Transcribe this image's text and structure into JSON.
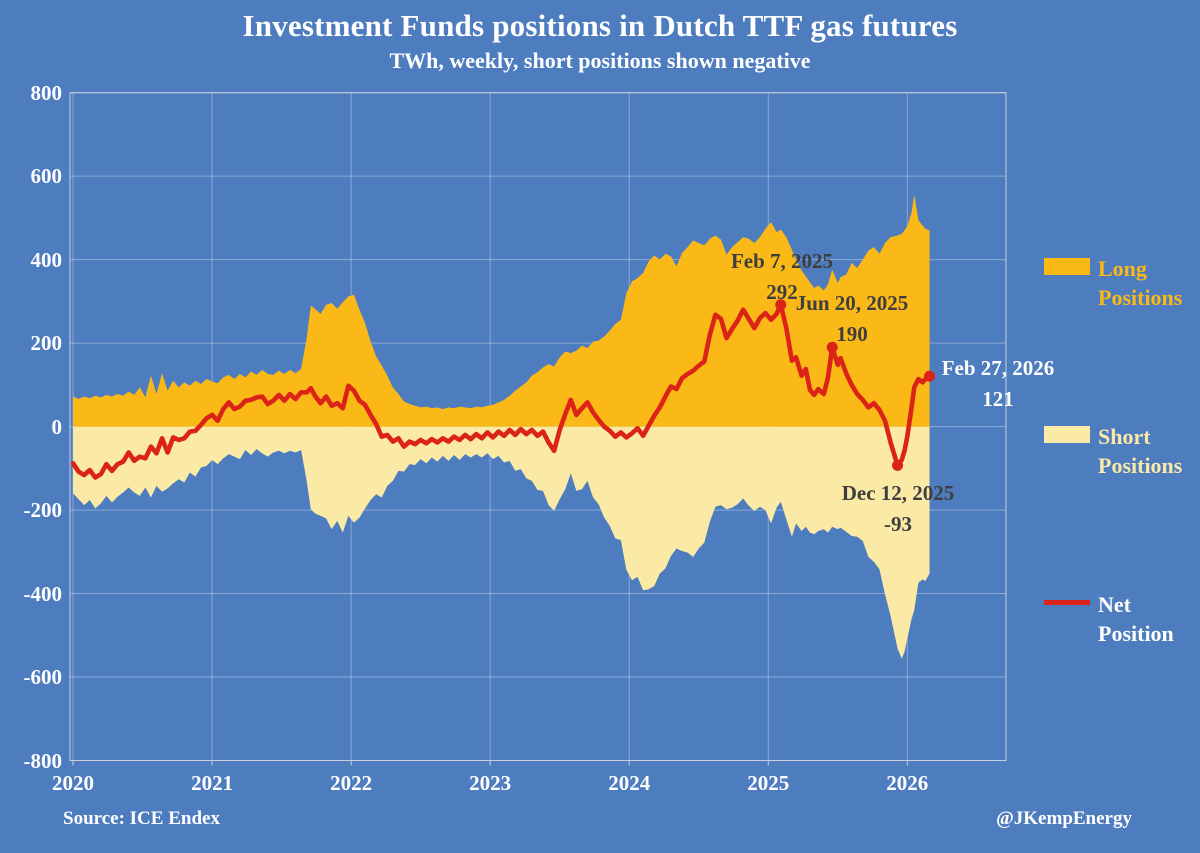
{
  "colors": {
    "background": "#4d7cbf",
    "long_fill": "#FBB917",
    "short_fill": "#FBE9A6",
    "net_line": "#DB2317",
    "grid": "rgba(215,224,238,0.45)",
    "frame": "#c9d1de",
    "annotation_dark": "#3e3e3e",
    "annotation_light": "#ffffff"
  },
  "footer": {
    "source": "Source: ICE Endex",
    "handle": "@JKempEnergy"
  },
  "chart_data": {
    "type": "area",
    "title": "Investment Funds positions in Dutch TTF gas futures",
    "subtitle": "TWh, weekly, short positions shown negative",
    "xlabel": "",
    "ylabel": "",
    "xlim": [
      2019.978,
      2026.71
    ],
    "ylim": [
      -800,
      800
    ],
    "grid": true,
    "x_ticks": [
      2020,
      2021,
      2022,
      2023,
      2024,
      2025,
      2026
    ],
    "y_ticks": [
      800,
      600,
      400,
      200,
      0,
      -200,
      -400,
      -600,
      -800
    ],
    "x": [
      2020.0,
      2020.04,
      2020.08,
      2020.12,
      2020.16,
      2020.2,
      2020.24,
      2020.28,
      2020.32,
      2020.36,
      2020.4,
      2020.44,
      2020.48,
      2020.52,
      2020.56,
      2020.6,
      2020.64,
      2020.68,
      2020.72,
      2020.76,
      2020.8,
      2020.84,
      2020.88,
      2020.92,
      2020.96,
      2021.0,
      2021.04,
      2021.08,
      2021.12,
      2021.16,
      2021.2,
      2021.24,
      2021.28,
      2021.32,
      2021.36,
      2021.4,
      2021.44,
      2021.48,
      2021.52,
      2021.56,
      2021.6,
      2021.64,
      2021.68,
      2021.71,
      2021.74,
      2021.78,
      2021.82,
      2021.86,
      2021.9,
      2021.94,
      2021.98,
      2022.02,
      2022.06,
      2022.1,
      2022.14,
      2022.18,
      2022.22,
      2022.26,
      2022.3,
      2022.34,
      2022.38,
      2022.42,
      2022.46,
      2022.5,
      2022.54,
      2022.58,
      2022.62,
      2022.66,
      2022.7,
      2022.74,
      2022.78,
      2022.82,
      2022.86,
      2022.9,
      2022.94,
      2022.98,
      2023.02,
      2023.06,
      2023.1,
      2023.14,
      2023.18,
      2023.22,
      2023.26,
      2023.3,
      2023.34,
      2023.38,
      2023.42,
      2023.46,
      2023.5,
      2023.54,
      2023.58,
      2023.62,
      2023.66,
      2023.7,
      2023.74,
      2023.78,
      2023.82,
      2023.86,
      2023.9,
      2023.94,
      2023.98,
      2024.02,
      2024.06,
      2024.1,
      2024.14,
      2024.18,
      2024.22,
      2024.26,
      2024.3,
      2024.34,
      2024.38,
      2024.42,
      2024.46,
      2024.5,
      2024.54,
      2024.58,
      2024.62,
      2024.66,
      2024.7,
      2024.74,
      2024.78,
      2024.82,
      2024.86,
      2024.9,
      2024.94,
      2024.98,
      2025.02,
      2025.06,
      2025.09,
      2025.13,
      2025.17,
      2025.2,
      2025.24,
      2025.27,
      2025.3,
      2025.33,
      2025.36,
      2025.4,
      2025.43,
      2025.46,
      2025.5,
      2025.52,
      2025.56,
      2025.6,
      2025.64,
      2025.68,
      2025.72,
      2025.76,
      2025.8,
      2025.84,
      2025.88,
      2025.93,
      2025.96,
      2025.98,
      2026.0,
      2026.03,
      2026.05,
      2026.08,
      2026.11,
      2026.13,
      2026.16
    ],
    "series": [
      {
        "name": "Long Positions",
        "kind": "area",
        "color": "#FBB917",
        "values": [
          72,
          66,
          72,
          68,
          74,
          70,
          76,
          72,
          78,
          74,
          84,
          76,
          94,
          70,
          122,
          78,
          128,
          86,
          110,
          94,
          106,
          98,
          110,
          102,
          114,
          108,
          104,
          118,
          124,
          114,
          126,
          118,
          132,
          124,
          136,
          126,
          124,
          134,
          126,
          136,
          128,
          138,
          212,
          290,
          282,
          270,
          292,
          296,
          282,
          298,
          312,
          316,
          280,
          248,
          204,
          168,
          146,
          122,
          94,
          78,
          60,
          54,
          50,
          46,
          48,
          44,
          46,
          42,
          46,
          44,
          48,
          46,
          44,
          48,
          46,
          50,
          52,
          58,
          64,
          74,
          86,
          96,
          106,
          122,
          130,
          142,
          150,
          144,
          166,
          180,
          176,
          182,
          194,
          188,
          204,
          206,
          216,
          230,
          246,
          256,
          320,
          348,
          356,
          368,
          396,
          410,
          400,
          414,
          408,
          384,
          416,
          430,
          446,
          440,
          434,
          450,
          458,
          448,
          412,
          430,
          442,
          454,
          450,
          440,
          454,
          474,
          490,
          466,
          472,
          454,
          424,
          400,
          374,
          360,
          346,
          332,
          338,
          326,
          342,
          376,
          344,
          358,
          364,
          392,
          380,
          400,
          422,
          430,
          414,
          440,
          454,
          458,
          462,
          470,
          480,
          512,
          556,
          494,
          482,
          474,
          470
        ]
      },
      {
        "name": "Short Positions",
        "kind": "area",
        "color": "#FBE9A6",
        "values": [
          -160,
          -174,
          -188,
          -176,
          -196,
          -184,
          -166,
          -182,
          -168,
          -158,
          -146,
          -158,
          -166,
          -146,
          -170,
          -142,
          -156,
          -148,
          -136,
          -126,
          -134,
          -110,
          -120,
          -98,
          -94,
          -80,
          -90,
          -76,
          -66,
          -72,
          -78,
          -56,
          -68,
          -54,
          -64,
          -72,
          -62,
          -58,
          -64,
          -58,
          -62,
          -56,
          -130,
          -198,
          -208,
          -214,
          -220,
          -246,
          -226,
          -254,
          -214,
          -230,
          -218,
          -196,
          -176,
          -162,
          -170,
          -142,
          -130,
          -106,
          -108,
          -90,
          -92,
          -78,
          -88,
          -74,
          -84,
          -70,
          -82,
          -68,
          -80,
          -66,
          -74,
          -66,
          -74,
          -64,
          -78,
          -70,
          -86,
          -82,
          -106,
          -102,
          -124,
          -130,
          -152,
          -154,
          -188,
          -202,
          -174,
          -150,
          -112,
          -154,
          -150,
          -130,
          -170,
          -186,
          -218,
          -238,
          -268,
          -272,
          -344,
          -368,
          -360,
          -392,
          -390,
          -382,
          -352,
          -340,
          -310,
          -292,
          -298,
          -302,
          -312,
          -292,
          -278,
          -228,
          -192,
          -188,
          -198,
          -194,
          -186,
          -172,
          -190,
          -202,
          -192,
          -200,
          -232,
          -194,
          -180,
          -222,
          -264,
          -232,
          -250,
          -240,
          -254,
          -258,
          -250,
          -246,
          -254,
          -240,
          -246,
          -242,
          -252,
          -262,
          -264,
          -274,
          -312,
          -324,
          -342,
          -402,
          -454,
          -532,
          -556,
          -540,
          -508,
          -462,
          -440,
          -374,
          -366,
          -370,
          -352
        ]
      },
      {
        "name": "Net Position",
        "kind": "line",
        "color": "#DB2317",
        "values": [
          -88,
          -108,
          -116,
          -104,
          -122,
          -114,
          -90,
          -106,
          -90,
          -84,
          -62,
          -82,
          -72,
          -76,
          -48,
          -64,
          -28,
          -62,
          -26,
          -32,
          -28,
          -12,
          -10,
          4,
          20,
          28,
          14,
          42,
          58,
          42,
          48,
          62,
          64,
          70,
          72,
          54,
          62,
          76,
          62,
          78,
          66,
          82,
          82,
          92,
          74,
          56,
          72,
          50,
          56,
          44,
          98,
          86,
          62,
          52,
          28,
          6,
          -24,
          -20,
          -36,
          -28,
          -48,
          -36,
          -42,
          -32,
          -40,
          -30,
          -38,
          -28,
          -36,
          -24,
          -32,
          -20,
          -30,
          -18,
          -28,
          -14,
          -26,
          -12,
          -22,
          -8,
          -20,
          -6,
          -18,
          -8,
          -22,
          -12,
          -38,
          -58,
          -8,
          30,
          64,
          28,
          44,
          58,
          34,
          16,
          0,
          -10,
          -24,
          -14,
          -26,
          -16,
          -4,
          -22,
          2,
          26,
          46,
          72,
          96,
          90,
          116,
          126,
          134,
          146,
          156,
          220,
          268,
          258,
          212,
          234,
          254,
          280,
          258,
          236,
          260,
          272,
          256,
          270,
          292,
          236,
          158,
          166,
          122,
          138,
          88,
          76,
          90,
          78,
          118,
          190,
          148,
          164,
          128,
          100,
          78,
          64,
          46,
          56,
          40,
          14,
          -38,
          -93,
          -80,
          -58,
          -24,
          44,
          94,
          114,
          106,
          114,
          121
        ]
      }
    ],
    "markers": [
      {
        "x": 2025.09,
        "y": 292
      },
      {
        "x": 2025.46,
        "y": 190
      },
      {
        "x": 2025.93,
        "y": -93
      },
      {
        "x": 2026.16,
        "y": 121
      }
    ],
    "annotations": [
      {
        "date": "Feb 7, 2025",
        "value": "292",
        "x": 2025.09,
        "y": 292,
        "tone": "dark"
      },
      {
        "date": "Jun 20, 2025",
        "value": "190",
        "x": 2025.46,
        "y": 190,
        "tone": "dark"
      },
      {
        "date": "Feb 27, 2026",
        "value": "121",
        "x": 2026.16,
        "y": 121,
        "tone": "light"
      },
      {
        "date": "Dec 12, 2025",
        "value": "-93",
        "x": 2025.93,
        "y": -93,
        "tone": "dark"
      }
    ],
    "legend_position": "right",
    "legend": [
      {
        "line1": "Long",
        "line2": "Positions",
        "color": "#FBB917",
        "text_color": "#FBB917",
        "kind": "area"
      },
      {
        "line1": "Short",
        "line2": "Positions",
        "color": "#FBE9A6",
        "text_color": "#FBE9A6",
        "kind": "area"
      },
      {
        "line1": "Net",
        "line2": "Position",
        "color": "#DB2317",
        "text_color": "#ffffff",
        "kind": "line"
      }
    ]
  }
}
